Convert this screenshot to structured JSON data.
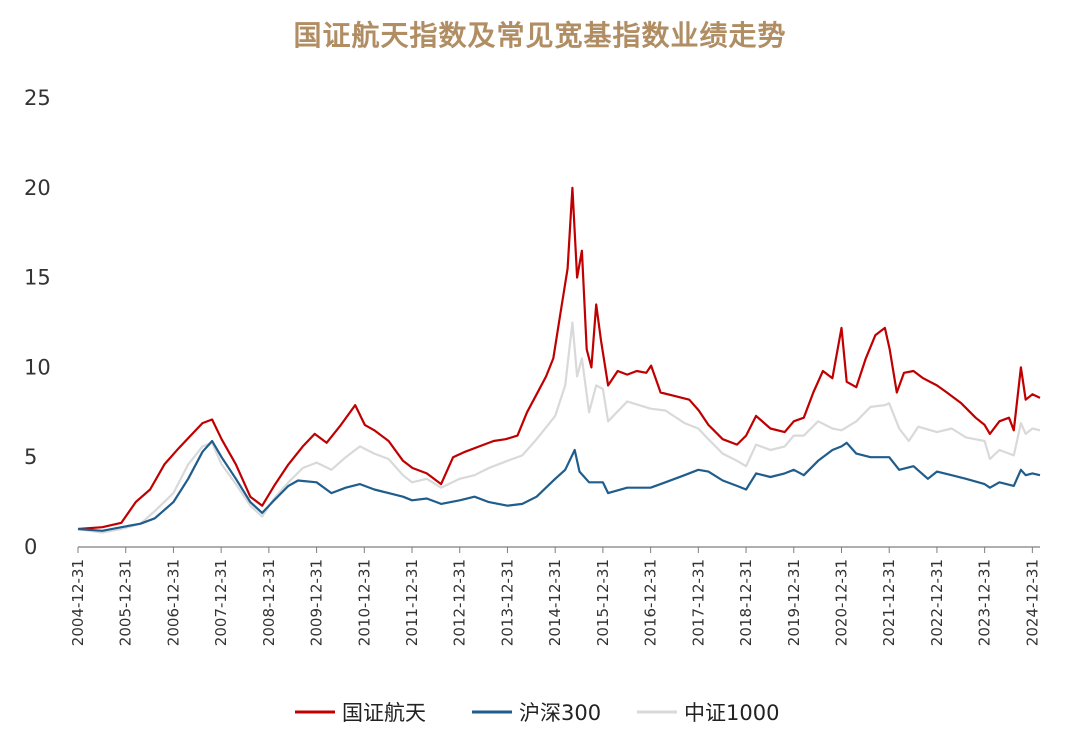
{
  "chart_data": {
    "type": "line",
    "title": "国证航天指数及常见宽基指数业绩走势",
    "xlabel": "",
    "ylabel": "",
    "ylim": [
      0,
      25
    ],
    "yticks": [
      "0",
      "5",
      "10",
      "15",
      "20",
      "25"
    ],
    "xtick_labels": [
      "2004-12-31",
      "2005-12-31",
      "2006-12-31",
      "2007-12-31",
      "2008-12-31",
      "2009-12-31",
      "2010-12-31",
      "2011-12-31",
      "2012-12-31",
      "2013-12-31",
      "2014-12-31",
      "2015-12-31",
      "2016-12-31",
      "2017-12-31",
      "2018-12-31",
      "2019-12-31",
      "2020-12-31",
      "2021-12-31",
      "2022-12-31",
      "2023-12-31",
      "2024-12-31"
    ],
    "grid": false,
    "legend_position": "bottom",
    "series": [
      {
        "name": "国证航天",
        "color": "#c00000",
        "points": [
          [
            2004.99,
            1.0
          ],
          [
            2005.5,
            1.1
          ],
          [
            2005.9,
            1.35
          ],
          [
            2006.2,
            2.5
          ],
          [
            2006.5,
            3.2
          ],
          [
            2006.8,
            4.6
          ],
          [
            2007.1,
            5.5
          ],
          [
            2007.35,
            6.2
          ],
          [
            2007.6,
            6.9
          ],
          [
            2007.8,
            7.1
          ],
          [
            2008.0,
            6.0
          ],
          [
            2008.3,
            4.6
          ],
          [
            2008.6,
            2.8
          ],
          [
            2008.85,
            2.3
          ],
          [
            2009.1,
            3.4
          ],
          [
            2009.4,
            4.6
          ],
          [
            2009.7,
            5.6
          ],
          [
            2009.95,
            6.3
          ],
          [
            2010.2,
            5.8
          ],
          [
            2010.5,
            6.8
          ],
          [
            2010.8,
            7.9
          ],
          [
            2011.0,
            6.8
          ],
          [
            2011.2,
            6.5
          ],
          [
            2011.5,
            5.9
          ],
          [
            2011.8,
            4.8
          ],
          [
            2012.0,
            4.4
          ],
          [
            2012.3,
            4.1
          ],
          [
            2012.6,
            3.5
          ],
          [
            2012.85,
            5.0
          ],
          [
            2013.1,
            5.3
          ],
          [
            2013.4,
            5.6
          ],
          [
            2013.7,
            5.9
          ],
          [
            2013.95,
            6.0
          ],
          [
            2014.2,
            6.2
          ],
          [
            2014.4,
            7.5
          ],
          [
            2014.6,
            8.5
          ],
          [
            2014.8,
            9.5
          ],
          [
            2014.95,
            10.5
          ],
          [
            2015.1,
            13.0
          ],
          [
            2015.25,
            15.5
          ],
          [
            2015.35,
            20.0
          ],
          [
            2015.45,
            15.0
          ],
          [
            2015.55,
            16.5
          ],
          [
            2015.65,
            11.0
          ],
          [
            2015.75,
            10.0
          ],
          [
            2015.85,
            13.5
          ],
          [
            2015.95,
            11.5
          ],
          [
            2016.1,
            9.0
          ],
          [
            2016.3,
            9.8
          ],
          [
            2016.5,
            9.6
          ],
          [
            2016.7,
            9.8
          ],
          [
            2016.9,
            9.7
          ],
          [
            2017.0,
            10.1
          ],
          [
            2017.2,
            8.6
          ],
          [
            2017.5,
            8.4
          ],
          [
            2017.8,
            8.2
          ],
          [
            2018.0,
            7.6
          ],
          [
            2018.2,
            6.8
          ],
          [
            2018.5,
            6.0
          ],
          [
            2018.8,
            5.7
          ],
          [
            2018.99,
            6.2
          ],
          [
            2019.2,
            7.3
          ],
          [
            2019.5,
            6.6
          ],
          [
            2019.8,
            6.4
          ],
          [
            2019.99,
            7.0
          ],
          [
            2020.2,
            7.2
          ],
          [
            2020.4,
            8.6
          ],
          [
            2020.6,
            9.8
          ],
          [
            2020.8,
            9.4
          ],
          [
            2020.99,
            12.2
          ],
          [
            2021.1,
            9.2
          ],
          [
            2021.3,
            8.9
          ],
          [
            2021.5,
            10.5
          ],
          [
            2021.7,
            11.8
          ],
          [
            2021.9,
            12.2
          ],
          [
            2022.0,
            11.0
          ],
          [
            2022.15,
            8.6
          ],
          [
            2022.3,
            9.7
          ],
          [
            2022.5,
            9.8
          ],
          [
            2022.7,
            9.4
          ],
          [
            2022.99,
            9.0
          ],
          [
            2023.2,
            8.6
          ],
          [
            2023.5,
            8.0
          ],
          [
            2023.8,
            7.2
          ],
          [
            2023.99,
            6.8
          ],
          [
            2024.1,
            6.3
          ],
          [
            2024.3,
            7.0
          ],
          [
            2024.5,
            7.2
          ],
          [
            2024.6,
            6.5
          ],
          [
            2024.75,
            10.0
          ],
          [
            2024.85,
            8.2
          ],
          [
            2024.99,
            8.5
          ],
          [
            2025.15,
            8.3
          ]
        ]
      },
      {
        "name": "沪深300",
        "color": "#1f5d8c",
        "points": [
          [
            2004.99,
            1.0
          ],
          [
            2005.5,
            0.9
          ],
          [
            2005.9,
            1.1
          ],
          [
            2006.3,
            1.3
          ],
          [
            2006.6,
            1.6
          ],
          [
            2006.99,
            2.5
          ],
          [
            2007.3,
            3.8
          ],
          [
            2007.6,
            5.3
          ],
          [
            2007.8,
            5.9
          ],
          [
            2008.0,
            5.0
          ],
          [
            2008.3,
            3.8
          ],
          [
            2008.6,
            2.5
          ],
          [
            2008.85,
            1.9
          ],
          [
            2009.1,
            2.6
          ],
          [
            2009.4,
            3.4
          ],
          [
            2009.6,
            3.7
          ],
          [
            2009.99,
            3.6
          ],
          [
            2010.3,
            3.0
          ],
          [
            2010.6,
            3.3
          ],
          [
            2010.9,
            3.5
          ],
          [
            2011.2,
            3.2
          ],
          [
            2011.5,
            3.0
          ],
          [
            2011.8,
            2.8
          ],
          [
            2011.99,
            2.6
          ],
          [
            2012.3,
            2.7
          ],
          [
            2012.6,
            2.4
          ],
          [
            2012.99,
            2.6
          ],
          [
            2013.3,
            2.8
          ],
          [
            2013.6,
            2.5
          ],
          [
            2013.99,
            2.3
          ],
          [
            2014.3,
            2.4
          ],
          [
            2014.6,
            2.8
          ],
          [
            2014.99,
            3.8
          ],
          [
            2015.2,
            4.3
          ],
          [
            2015.4,
            5.4
          ],
          [
            2015.5,
            4.2
          ],
          [
            2015.7,
            3.6
          ],
          [
            2015.99,
            3.6
          ],
          [
            2016.1,
            3.0
          ],
          [
            2016.5,
            3.3
          ],
          [
            2016.99,
            3.3
          ],
          [
            2017.3,
            3.6
          ],
          [
            2017.7,
            4.0
          ],
          [
            2017.99,
            4.3
          ],
          [
            2018.2,
            4.2
          ],
          [
            2018.5,
            3.7
          ],
          [
            2018.8,
            3.4
          ],
          [
            2018.99,
            3.2
          ],
          [
            2019.2,
            4.1
          ],
          [
            2019.5,
            3.9
          ],
          [
            2019.8,
            4.1
          ],
          [
            2019.99,
            4.3
          ],
          [
            2020.2,
            4.0
          ],
          [
            2020.5,
            4.8
          ],
          [
            2020.8,
            5.4
          ],
          [
            2020.99,
            5.6
          ],
          [
            2021.1,
            5.8
          ],
          [
            2021.3,
            5.2
          ],
          [
            2021.6,
            5.0
          ],
          [
            2021.99,
            5.0
          ],
          [
            2022.2,
            4.3
          ],
          [
            2022.5,
            4.5
          ],
          [
            2022.8,
            3.8
          ],
          [
            2022.99,
            4.2
          ],
          [
            2023.3,
            4.0
          ],
          [
            2023.6,
            3.8
          ],
          [
            2023.99,
            3.5
          ],
          [
            2024.1,
            3.3
          ],
          [
            2024.3,
            3.6
          ],
          [
            2024.6,
            3.4
          ],
          [
            2024.75,
            4.3
          ],
          [
            2024.85,
            4.0
          ],
          [
            2024.99,
            4.1
          ],
          [
            2025.15,
            4.0
          ]
        ]
      },
      {
        "name": "中证1000",
        "color": "#d9d9d9",
        "points": [
          [
            2004.99,
            1.0
          ],
          [
            2005.5,
            0.8
          ],
          [
            2005.9,
            1.0
          ],
          [
            2006.3,
            1.3
          ],
          [
            2006.6,
            2.0
          ],
          [
            2006.99,
            3.0
          ],
          [
            2007.3,
            4.6
          ],
          [
            2007.6,
            5.6
          ],
          [
            2007.8,
            5.8
          ],
          [
            2008.0,
            4.6
          ],
          [
            2008.3,
            3.5
          ],
          [
            2008.6,
            2.3
          ],
          [
            2008.85,
            1.7
          ],
          [
            2009.1,
            2.7
          ],
          [
            2009.4,
            3.6
          ],
          [
            2009.7,
            4.4
          ],
          [
            2009.99,
            4.7
          ],
          [
            2010.3,
            4.3
          ],
          [
            2010.6,
            5.0
          ],
          [
            2010.9,
            5.6
          ],
          [
            2011.2,
            5.2
          ],
          [
            2011.5,
            4.9
          ],
          [
            2011.8,
            4.0
          ],
          [
            2011.99,
            3.6
          ],
          [
            2012.3,
            3.8
          ],
          [
            2012.6,
            3.3
          ],
          [
            2012.99,
            3.8
          ],
          [
            2013.3,
            4.0
          ],
          [
            2013.6,
            4.4
          ],
          [
            2013.99,
            4.8
          ],
          [
            2014.3,
            5.1
          ],
          [
            2014.6,
            6.0
          ],
          [
            2014.99,
            7.3
          ],
          [
            2015.2,
            9.0
          ],
          [
            2015.35,
            12.5
          ],
          [
            2015.45,
            9.5
          ],
          [
            2015.55,
            10.5
          ],
          [
            2015.7,
            7.5
          ],
          [
            2015.85,
            9.0
          ],
          [
            2015.99,
            8.8
          ],
          [
            2016.1,
            7.0
          ],
          [
            2016.5,
            8.1
          ],
          [
            2016.99,
            7.7
          ],
          [
            2017.3,
            7.6
          ],
          [
            2017.7,
            6.9
          ],
          [
            2017.99,
            6.6
          ],
          [
            2018.2,
            6.0
          ],
          [
            2018.5,
            5.2
          ],
          [
            2018.8,
            4.8
          ],
          [
            2018.99,
            4.5
          ],
          [
            2019.2,
            5.7
          ],
          [
            2019.5,
            5.4
          ],
          [
            2019.8,
            5.6
          ],
          [
            2019.99,
            6.2
          ],
          [
            2020.2,
            6.2
          ],
          [
            2020.5,
            7.0
          ],
          [
            2020.8,
            6.6
          ],
          [
            2020.99,
            6.5
          ],
          [
            2021.3,
            7.0
          ],
          [
            2021.6,
            7.8
          ],
          [
            2021.9,
            7.9
          ],
          [
            2021.99,
            8.0
          ],
          [
            2022.2,
            6.6
          ],
          [
            2022.4,
            5.9
          ],
          [
            2022.6,
            6.7
          ],
          [
            2022.99,
            6.4
          ],
          [
            2023.3,
            6.6
          ],
          [
            2023.6,
            6.1
          ],
          [
            2023.99,
            5.9
          ],
          [
            2024.1,
            4.9
          ],
          [
            2024.3,
            5.4
          ],
          [
            2024.6,
            5.1
          ],
          [
            2024.75,
            6.9
          ],
          [
            2024.85,
            6.3
          ],
          [
            2024.99,
            6.6
          ],
          [
            2025.15,
            6.5
          ]
        ]
      }
    ]
  }
}
